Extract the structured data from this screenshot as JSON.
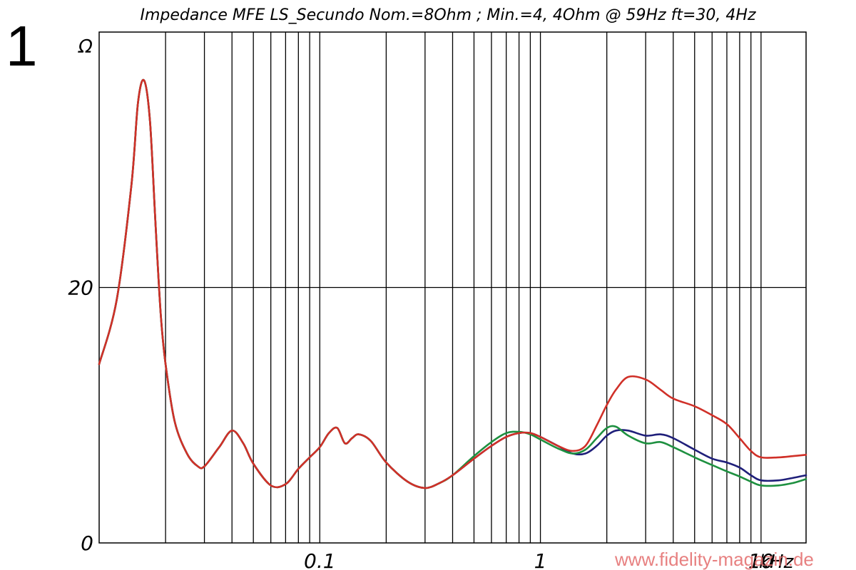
{
  "figure_number": "1",
  "watermark": "www.fidelity-magazin.de",
  "chart_data": {
    "type": "line",
    "title": "Impedance MFE LS_Secundo Nom.=8Ohm ; Min.=4, 4Ohm @ 59Hz ft=30, 4Hz",
    "x_scale": "log",
    "x_unit": "kHz",
    "y_unit": "Ω",
    "xlim": [
      0.01,
      16
    ],
    "ylim": [
      0,
      40
    ],
    "x_ticks": [
      {
        "value": 0.1,
        "label": "0.1"
      },
      {
        "value": 1,
        "label": "1"
      },
      {
        "value": 10,
        "label": "10"
      }
    ],
    "y_ticks": [
      {
        "value": 0,
        "label": "0"
      },
      {
        "value": 20,
        "label": "20"
      }
    ],
    "grid": true,
    "series": [
      {
        "color": "#1f1f7a",
        "x": [
          0.01,
          0.012,
          0.014,
          0.015,
          0.016,
          0.017,
          0.018,
          0.019,
          0.02,
          0.022,
          0.025,
          0.028,
          0.03,
          0.035,
          0.04,
          0.045,
          0.05,
          0.06,
          0.07,
          0.08,
          0.09,
          0.1,
          0.11,
          0.12,
          0.13,
          0.14,
          0.15,
          0.17,
          0.2,
          0.25,
          0.3,
          0.35,
          0.4,
          0.5,
          0.6,
          0.7,
          0.8,
          0.9,
          1.0,
          1.2,
          1.4,
          1.6,
          1.8,
          2.0,
          2.2,
          2.5,
          3.0,
          3.5,
          4.0,
          5.0,
          6.0,
          7.0,
          8.0,
          9.0,
          10,
          12,
          14,
          16
        ],
        "y": [
          14.0,
          19.0,
          28.0,
          34.5,
          36.2,
          33.0,
          25.0,
          18.0,
          14.0,
          9.5,
          7.0,
          6.0,
          6.0,
          7.5,
          8.8,
          7.8,
          6.2,
          4.5,
          4.6,
          5.8,
          6.7,
          7.5,
          8.6,
          9.0,
          7.8,
          8.2,
          8.5,
          8.0,
          6.3,
          4.8,
          4.3,
          4.7,
          5.3,
          6.6,
          7.6,
          8.3,
          8.6,
          8.6,
          8.3,
          7.6,
          7.0,
          7.0,
          7.6,
          8.4,
          8.8,
          8.8,
          8.4,
          8.5,
          8.2,
          7.3,
          6.6,
          6.3,
          5.9,
          5.3,
          4.9,
          4.9,
          5.1,
          5.3
        ]
      },
      {
        "color": "#1e9040",
        "x": [
          0.01,
          0.012,
          0.014,
          0.015,
          0.016,
          0.017,
          0.018,
          0.019,
          0.02,
          0.022,
          0.025,
          0.028,
          0.03,
          0.035,
          0.04,
          0.045,
          0.05,
          0.06,
          0.07,
          0.08,
          0.09,
          0.1,
          0.11,
          0.12,
          0.13,
          0.14,
          0.15,
          0.17,
          0.2,
          0.25,
          0.3,
          0.35,
          0.4,
          0.5,
          0.6,
          0.7,
          0.8,
          0.9,
          1.0,
          1.2,
          1.4,
          1.6,
          1.8,
          2.0,
          2.2,
          2.5,
          3.0,
          3.5,
          4.0,
          5.0,
          6.0,
          7.0,
          8.0,
          9.0,
          10,
          12,
          14,
          16
        ],
        "y": [
          14.0,
          19.0,
          28.0,
          34.5,
          36.2,
          33.0,
          25.0,
          18.0,
          14.0,
          9.5,
          7.0,
          6.0,
          6.0,
          7.5,
          8.8,
          7.8,
          6.2,
          4.5,
          4.6,
          5.8,
          6.7,
          7.5,
          8.6,
          9.0,
          7.8,
          8.2,
          8.5,
          8.0,
          6.3,
          4.8,
          4.3,
          4.7,
          5.3,
          6.8,
          7.9,
          8.6,
          8.7,
          8.5,
          8.1,
          7.4,
          7.0,
          7.3,
          8.2,
          9.0,
          9.1,
          8.4,
          7.8,
          7.9,
          7.5,
          6.7,
          6.1,
          5.6,
          5.2,
          4.8,
          4.5,
          4.5,
          4.7,
          5.0
        ]
      },
      {
        "color": "#d03028",
        "x": [
          0.01,
          0.012,
          0.014,
          0.015,
          0.016,
          0.017,
          0.018,
          0.019,
          0.02,
          0.022,
          0.025,
          0.028,
          0.03,
          0.035,
          0.04,
          0.045,
          0.05,
          0.06,
          0.07,
          0.08,
          0.09,
          0.1,
          0.11,
          0.12,
          0.13,
          0.14,
          0.15,
          0.17,
          0.2,
          0.25,
          0.3,
          0.35,
          0.4,
          0.5,
          0.6,
          0.7,
          0.8,
          0.9,
          1.0,
          1.2,
          1.4,
          1.6,
          1.8,
          2.0,
          2.2,
          2.5,
          3.0,
          3.5,
          4.0,
          5.0,
          6.0,
          7.0,
          8.0,
          9.0,
          10,
          12,
          14,
          16
        ],
        "y": [
          14.0,
          19.0,
          28.0,
          34.5,
          36.2,
          33.0,
          25.0,
          18.0,
          14.0,
          9.5,
          7.0,
          6.0,
          6.0,
          7.5,
          8.8,
          7.8,
          6.2,
          4.5,
          4.6,
          5.8,
          6.7,
          7.5,
          8.6,
          9.0,
          7.8,
          8.2,
          8.5,
          8.0,
          6.3,
          4.8,
          4.3,
          4.7,
          5.3,
          6.6,
          7.6,
          8.3,
          8.6,
          8.6,
          8.3,
          7.6,
          7.2,
          7.6,
          9.2,
          10.8,
          12.0,
          13.0,
          12.8,
          12.0,
          11.3,
          10.7,
          10.0,
          9.3,
          8.2,
          7.2,
          6.7,
          6.7,
          6.8,
          6.9
        ]
      }
    ]
  }
}
